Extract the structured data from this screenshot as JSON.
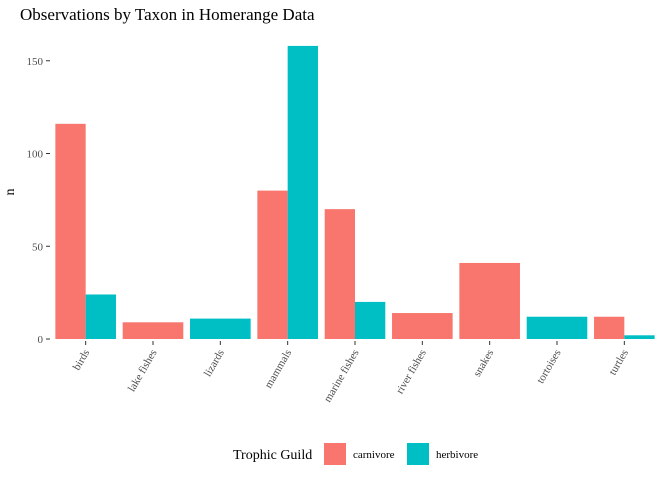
{
  "chart_data": {
    "type": "bar",
    "title": "Observations by Taxon in Homerange Data",
    "xlabel": "",
    "ylabel": "n",
    "ylim": [
      0,
      160
    ],
    "yticks": [
      0,
      50,
      100,
      150
    ],
    "grid": false,
    "categories": [
      "birds",
      "lake fishes",
      "lizards",
      "mammals",
      "marine fishes",
      "river fishes",
      "snakes",
      "tortoises",
      "turtles"
    ],
    "series": [
      {
        "name": "carnivore",
        "color": "#F8766D",
        "values": [
          116,
          9,
          null,
          80,
          70,
          14,
          41,
          null,
          12
        ]
      },
      {
        "name": "herbivore",
        "color": "#00BFC4",
        "values": [
          24,
          null,
          11,
          158,
          20,
          null,
          null,
          12,
          2
        ]
      }
    ],
    "legend": {
      "title": "Trophic Guild",
      "position": "bottom"
    }
  }
}
